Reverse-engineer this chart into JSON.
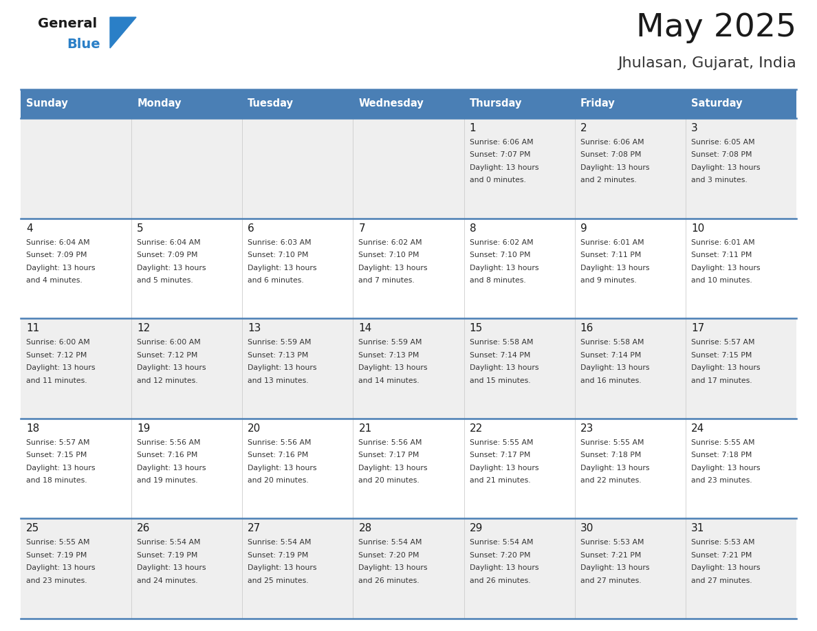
{
  "title": "May 2025",
  "subtitle": "Jhulasan, Gujarat, India",
  "header_bg": "#4a7fb5",
  "header_text": "#ffffff",
  "day_names": [
    "Sunday",
    "Monday",
    "Tuesday",
    "Wednesday",
    "Thursday",
    "Friday",
    "Saturday"
  ],
  "row_bg_odd": "#efefef",
  "row_bg_even": "#ffffff",
  "date_color": "#1a1a1a",
  "info_color": "#333333",
  "grid_color": "#4a7fb5",
  "weeks": [
    [
      {
        "day": null,
        "info": ""
      },
      {
        "day": null,
        "info": ""
      },
      {
        "day": null,
        "info": ""
      },
      {
        "day": null,
        "info": ""
      },
      {
        "day": 1,
        "info": "Sunrise: 6:06 AM\nSunset: 7:07 PM\nDaylight: 13 hours\nand 0 minutes."
      },
      {
        "day": 2,
        "info": "Sunrise: 6:06 AM\nSunset: 7:08 PM\nDaylight: 13 hours\nand 2 minutes."
      },
      {
        "day": 3,
        "info": "Sunrise: 6:05 AM\nSunset: 7:08 PM\nDaylight: 13 hours\nand 3 minutes."
      }
    ],
    [
      {
        "day": 4,
        "info": "Sunrise: 6:04 AM\nSunset: 7:09 PM\nDaylight: 13 hours\nand 4 minutes."
      },
      {
        "day": 5,
        "info": "Sunrise: 6:04 AM\nSunset: 7:09 PM\nDaylight: 13 hours\nand 5 minutes."
      },
      {
        "day": 6,
        "info": "Sunrise: 6:03 AM\nSunset: 7:10 PM\nDaylight: 13 hours\nand 6 minutes."
      },
      {
        "day": 7,
        "info": "Sunrise: 6:02 AM\nSunset: 7:10 PM\nDaylight: 13 hours\nand 7 minutes."
      },
      {
        "day": 8,
        "info": "Sunrise: 6:02 AM\nSunset: 7:10 PM\nDaylight: 13 hours\nand 8 minutes."
      },
      {
        "day": 9,
        "info": "Sunrise: 6:01 AM\nSunset: 7:11 PM\nDaylight: 13 hours\nand 9 minutes."
      },
      {
        "day": 10,
        "info": "Sunrise: 6:01 AM\nSunset: 7:11 PM\nDaylight: 13 hours\nand 10 minutes."
      }
    ],
    [
      {
        "day": 11,
        "info": "Sunrise: 6:00 AM\nSunset: 7:12 PM\nDaylight: 13 hours\nand 11 minutes."
      },
      {
        "day": 12,
        "info": "Sunrise: 6:00 AM\nSunset: 7:12 PM\nDaylight: 13 hours\nand 12 minutes."
      },
      {
        "day": 13,
        "info": "Sunrise: 5:59 AM\nSunset: 7:13 PM\nDaylight: 13 hours\nand 13 minutes."
      },
      {
        "day": 14,
        "info": "Sunrise: 5:59 AM\nSunset: 7:13 PM\nDaylight: 13 hours\nand 14 minutes."
      },
      {
        "day": 15,
        "info": "Sunrise: 5:58 AM\nSunset: 7:14 PM\nDaylight: 13 hours\nand 15 minutes."
      },
      {
        "day": 16,
        "info": "Sunrise: 5:58 AM\nSunset: 7:14 PM\nDaylight: 13 hours\nand 16 minutes."
      },
      {
        "day": 17,
        "info": "Sunrise: 5:57 AM\nSunset: 7:15 PM\nDaylight: 13 hours\nand 17 minutes."
      }
    ],
    [
      {
        "day": 18,
        "info": "Sunrise: 5:57 AM\nSunset: 7:15 PM\nDaylight: 13 hours\nand 18 minutes."
      },
      {
        "day": 19,
        "info": "Sunrise: 5:56 AM\nSunset: 7:16 PM\nDaylight: 13 hours\nand 19 minutes."
      },
      {
        "day": 20,
        "info": "Sunrise: 5:56 AM\nSunset: 7:16 PM\nDaylight: 13 hours\nand 20 minutes."
      },
      {
        "day": 21,
        "info": "Sunrise: 5:56 AM\nSunset: 7:17 PM\nDaylight: 13 hours\nand 20 minutes."
      },
      {
        "day": 22,
        "info": "Sunrise: 5:55 AM\nSunset: 7:17 PM\nDaylight: 13 hours\nand 21 minutes."
      },
      {
        "day": 23,
        "info": "Sunrise: 5:55 AM\nSunset: 7:18 PM\nDaylight: 13 hours\nand 22 minutes."
      },
      {
        "day": 24,
        "info": "Sunrise: 5:55 AM\nSunset: 7:18 PM\nDaylight: 13 hours\nand 23 minutes."
      }
    ],
    [
      {
        "day": 25,
        "info": "Sunrise: 5:55 AM\nSunset: 7:19 PM\nDaylight: 13 hours\nand 23 minutes."
      },
      {
        "day": 26,
        "info": "Sunrise: 5:54 AM\nSunset: 7:19 PM\nDaylight: 13 hours\nand 24 minutes."
      },
      {
        "day": 27,
        "info": "Sunrise: 5:54 AM\nSunset: 7:19 PM\nDaylight: 13 hours\nand 25 minutes."
      },
      {
        "day": 28,
        "info": "Sunrise: 5:54 AM\nSunset: 7:20 PM\nDaylight: 13 hours\nand 26 minutes."
      },
      {
        "day": 29,
        "info": "Sunrise: 5:54 AM\nSunset: 7:20 PM\nDaylight: 13 hours\nand 26 minutes."
      },
      {
        "day": 30,
        "info": "Sunrise: 5:53 AM\nSunset: 7:21 PM\nDaylight: 13 hours\nand 27 minutes."
      },
      {
        "day": 31,
        "info": "Sunrise: 5:53 AM\nSunset: 7:21 PM\nDaylight: 13 hours\nand 27 minutes."
      }
    ]
  ],
  "logo_general_color": "#1a1a1a",
  "logo_blue_color": "#2a7fc7",
  "logo_triangle_color": "#2a7fc7",
  "fig_width": 11.88,
  "fig_height": 9.18,
  "dpi": 100
}
